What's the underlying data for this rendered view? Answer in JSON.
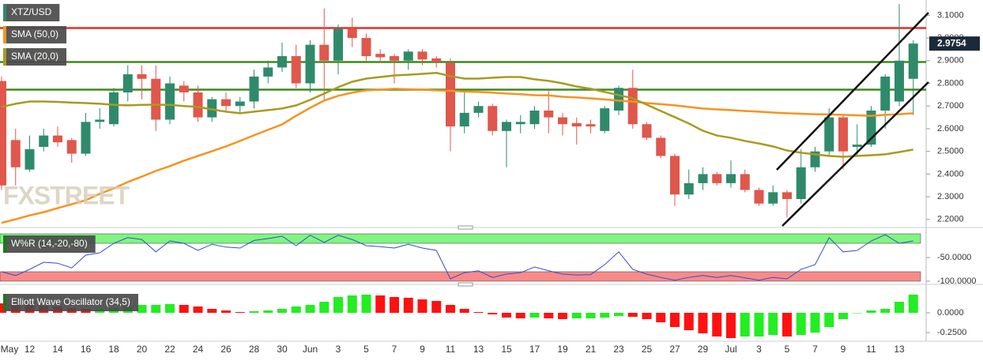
{
  "chart_data": [
    {
      "type": "candlestick",
      "annotation": "FXSTREET",
      "categories": [
        "May",
        null,
        "12",
        null,
        "14",
        null,
        "16",
        null,
        "18",
        null,
        "20",
        null,
        "22",
        null,
        "24",
        null,
        "26",
        null,
        "28",
        null,
        "30",
        null,
        "Jun",
        null,
        "3",
        null,
        "5",
        null,
        "7",
        null,
        "9",
        null,
        "11",
        null,
        "13",
        null,
        "15",
        null,
        "17",
        null,
        "19",
        null,
        "21",
        null,
        "23",
        null,
        "25",
        null,
        "27",
        null,
        "29",
        null,
        "Jul",
        null,
        "3",
        null,
        "5",
        null,
        "7",
        null,
        "9",
        null,
        "11",
        null,
        "13",
        null
      ],
      "up_color": "#2f8a6c",
      "down_color": "#e0574c",
      "series": [
        {
          "name": "XTZ/USD",
          "color": "#2f8a6c",
          "open": [
            2.81,
            2.55,
            2.42,
            2.52,
            2.57,
            2.55,
            2.49,
            2.63,
            2.62,
            2.76,
            2.84,
            2.82,
            2.64,
            2.79,
            2.76,
            2.65,
            2.73,
            2.7,
            2.72,
            2.83,
            2.87,
            2.92,
            2.8,
            2.97,
            2.9,
            3.04,
            3.0,
            2.93,
            2.92,
            2.9,
            2.94,
            2.91,
            2.89,
            2.61,
            2.67,
            2.7,
            2.59,
            2.62,
            2.62,
            2.68,
            2.65,
            2.625,
            2.62,
            2.59,
            2.68,
            2.78,
            2.62,
            2.56,
            2.48,
            2.31,
            2.36,
            2.4,
            2.36,
            2.4,
            2.33,
            2.27,
            2.32,
            2.29,
            2.43,
            2.5,
            2.65,
            2.52,
            2.53,
            2.68,
            2.72,
            2.82
          ],
          "high": [
            2.83,
            2.6,
            2.57,
            2.6,
            2.61,
            2.56,
            2.67,
            2.69,
            2.78,
            2.88,
            2.88,
            2.88,
            2.83,
            2.81,
            2.79,
            2.74,
            2.76,
            2.74,
            2.86,
            2.9,
            2.98,
            2.97,
            2.99,
            3.13,
            3.06,
            3.09,
            3.02,
            2.95,
            2.93,
            2.95,
            2.95,
            2.92,
            2.91,
            2.76,
            2.72,
            2.71,
            2.64,
            2.66,
            2.7,
            2.77,
            2.67,
            2.65,
            2.64,
            2.7,
            2.79,
            2.86,
            2.63,
            2.57,
            2.49,
            2.42,
            2.43,
            2.41,
            2.46,
            2.42,
            2.34,
            2.35,
            2.33,
            2.51,
            2.52,
            2.69,
            2.66,
            2.62,
            2.7,
            2.84,
            3.15,
            2.99
          ],
          "low": [
            2.33,
            2.35,
            2.41,
            2.5,
            2.52,
            2.45,
            2.48,
            2.6,
            2.61,
            2.72,
            2.73,
            2.59,
            2.62,
            2.72,
            2.63,
            2.63,
            2.68,
            2.67,
            2.69,
            2.8,
            2.85,
            2.78,
            2.76,
            2.72,
            2.84,
            2.96,
            2.9,
            2.89,
            2.8,
            2.86,
            2.88,
            2.87,
            2.5,
            2.58,
            2.65,
            2.57,
            2.43,
            2.58,
            2.6,
            2.58,
            2.57,
            2.53,
            2.58,
            2.58,
            2.66,
            2.6,
            2.55,
            2.47,
            2.26,
            2.29,
            2.33,
            2.35,
            2.34,
            2.32,
            2.26,
            2.26,
            2.21,
            2.27,
            2.41,
            2.48,
            2.42,
            2.48,
            2.52,
            2.6,
            2.7,
            2.66
          ],
          "close": [
            2.35,
            2.43,
            2.51,
            2.57,
            2.54,
            2.49,
            2.63,
            2.64,
            2.76,
            2.84,
            2.82,
            2.64,
            2.8,
            2.76,
            2.65,
            2.73,
            2.7,
            2.72,
            2.83,
            2.87,
            2.92,
            2.8,
            2.97,
            2.9,
            3.04,
            3.0,
            2.92,
            2.915,
            2.9,
            2.94,
            2.905,
            2.895,
            2.61,
            2.67,
            2.7,
            2.59,
            2.63,
            2.63,
            2.68,
            2.65,
            2.62,
            2.61,
            2.61,
            2.69,
            2.78,
            2.62,
            2.56,
            2.48,
            2.31,
            2.36,
            2.4,
            2.36,
            2.4,
            2.33,
            2.27,
            2.32,
            2.29,
            2.43,
            2.5,
            2.65,
            2.5,
            2.53,
            2.68,
            2.83,
            2.9,
            2.9754
          ]
        },
        {
          "name": "SMA (50,0)",
          "type": "line",
          "color": "#f7931e",
          "values": [
            2.185,
            2.201,
            2.218,
            2.232,
            2.25,
            2.267,
            2.285,
            2.313,
            2.337,
            2.365,
            2.389,
            2.414,
            2.435,
            2.459,
            2.48,
            2.501,
            2.522,
            2.546,
            2.571,
            2.595,
            2.619,
            2.657,
            2.692,
            2.724,
            2.745,
            2.759,
            2.769,
            2.772,
            2.776,
            2.774,
            2.772,
            2.769,
            2.767,
            2.764,
            2.762,
            2.759,
            2.755,
            2.752,
            2.748,
            2.747,
            2.741,
            2.738,
            2.734,
            2.729,
            2.724,
            2.72,
            2.713,
            2.708,
            2.703,
            2.696,
            2.689,
            2.685,
            2.682,
            2.678,
            2.675,
            2.671,
            2.668,
            2.666,
            2.664,
            2.663,
            2.661,
            2.659,
            2.657,
            2.661,
            2.664,
            2.668
          ]
        },
        {
          "name": "SMA (20,0)",
          "type": "line",
          "color": "#a89b1e",
          "values": [
            2.696,
            2.71,
            2.72,
            2.72,
            2.718,
            2.715,
            2.713,
            2.71,
            2.705,
            2.703,
            2.705,
            2.706,
            2.705,
            2.7,
            2.696,
            2.685,
            2.675,
            2.668,
            2.675,
            2.682,
            2.689,
            2.703,
            2.727,
            2.755,
            2.783,
            2.807,
            2.821,
            2.828,
            2.835,
            2.838,
            2.842,
            2.846,
            2.832,
            2.821,
            2.821,
            2.825,
            2.828,
            2.828,
            2.818,
            2.811,
            2.8,
            2.786,
            2.776,
            2.762,
            2.748,
            2.734,
            2.706,
            2.678,
            2.651,
            2.623,
            2.591,
            2.57,
            2.56,
            2.546,
            2.535,
            2.522,
            2.504,
            2.494,
            2.487,
            2.48,
            2.476,
            2.48,
            2.483,
            2.487,
            2.497,
            2.508
          ]
        }
      ],
      "levels": [
        {
          "value": 3.044,
          "color": "#e3312b"
        },
        {
          "value": 2.894,
          "color": "#3f8a1c"
        },
        {
          "value": 2.772,
          "color": "#3f8a1c"
        }
      ],
      "ylim": [
        2.175,
        3.15
      ],
      "yticks": [
        {
          "value": 3.1,
          "label": "3.1000"
        },
        {
          "value": 3.0,
          "label": "3.0000"
        },
        {
          "value": 2.9,
          "label": "2.9000"
        },
        {
          "value": 2.8,
          "label": "2.8000"
        },
        {
          "value": 2.7,
          "label": "2.7000"
        },
        {
          "value": 2.6,
          "label": "2.6000"
        },
        {
          "value": 2.5,
          "label": "2.5000"
        },
        {
          "value": 2.4,
          "label": "2.4000"
        },
        {
          "value": 2.3,
          "label": "2.3000"
        },
        {
          "value": 2.2,
          "label": "2.2000"
        }
      ]
    },
    {
      "type": "line",
      "series": [
        {
          "name": "W%R (14,-20,-80)",
          "color": "#2f4fd0",
          "values": [
            -80,
            -88,
            -75,
            -60,
            -62,
            -72,
            -45,
            -40,
            -20,
            -8,
            -12,
            -38,
            -15,
            -20,
            -35,
            -22,
            -28,
            -30,
            -14,
            -10,
            -5,
            -25,
            -3,
            -18,
            -3,
            -12,
            -25,
            -27,
            -30,
            -22,
            -30,
            -35,
            -95,
            -82,
            -78,
            -92,
            -85,
            -82,
            -70,
            -78,
            -85,
            -87,
            -86,
            -65,
            -38,
            -75,
            -85,
            -92,
            -98,
            -92,
            -88,
            -92,
            -88,
            -93,
            -98,
            -92,
            -95,
            -75,
            -65,
            -8,
            -38,
            -35,
            -15,
            -2,
            -20,
            -15
          ]
        }
      ],
      "bands": [
        {
          "from": 0,
          "to": -20,
          "color": "#80f580"
        },
        {
          "from": -80,
          "to": -100,
          "color": "#f98a8a"
        }
      ],
      "ylim": [
        -101.7,
        6.7
      ],
      "yticks": [
        {
          "value": -50,
          "label": "-50.0000"
        },
        {
          "value": -100,
          "label": "-100.0000"
        }
      ]
    },
    {
      "type": "bar",
      "series": [
        {
          "name": "Elliott Wave Oscillator (34,5)",
          "color": "#22dd22",
          "values": [
            0.12,
            0.11,
            0.1,
            0.09,
            0.08,
            0.06,
            0.05,
            0.05,
            0.06,
            0.08,
            0.1,
            0.1,
            0.11,
            0.1,
            0.08,
            0.05,
            0.03,
            0.01,
            0.02,
            0.03,
            0.05,
            0.08,
            0.1,
            0.14,
            0.2,
            0.22,
            0.23,
            0.22,
            0.2,
            0.19,
            0.17,
            0.15,
            0.1,
            0.05,
            0.01,
            -0.02,
            -0.06,
            -0.07,
            -0.06,
            -0.07,
            -0.08,
            -0.07,
            -0.07,
            -0.06,
            -0.04,
            -0.05,
            -0.08,
            -0.12,
            -0.18,
            -0.22,
            -0.26,
            -0.3,
            -0.32,
            -0.3,
            -0.3,
            -0.28,
            -0.3,
            -0.28,
            -0.25,
            -0.18,
            -0.08,
            0.0,
            0.03,
            0.05,
            0.14,
            0.23
          ]
        }
      ],
      "up_color": "#22ee22",
      "down_color": "#ff1111",
      "ylim": [
        -0.36,
        0.31
      ],
      "yticks": [
        {
          "value": 0,
          "label": "0.0000"
        },
        {
          "value": -0.25,
          "label": "-0.2500"
        }
      ]
    }
  ]
}
